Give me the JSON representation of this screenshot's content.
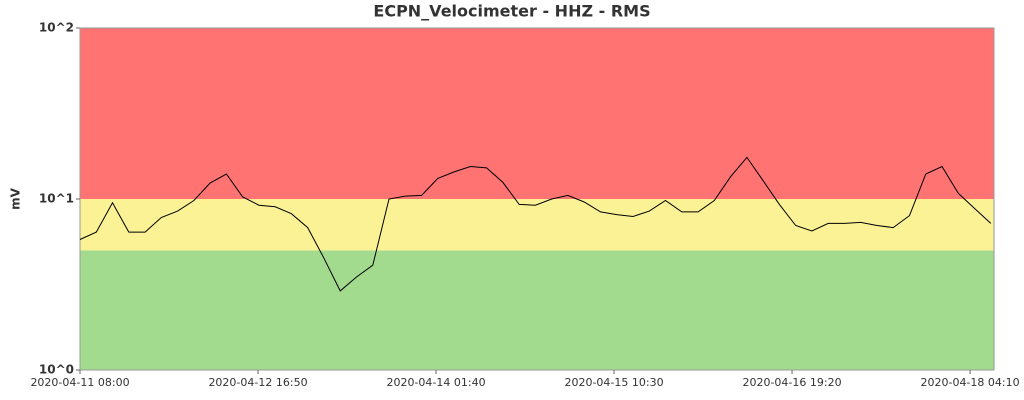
{
  "chart_data": {
    "type": "line",
    "title": "ECPN_Velocimeter - HHZ - RMS",
    "ylabel": "mV",
    "log_y": true,
    "ylim": [
      1,
      100
    ],
    "yticks": [
      {
        "value": 1,
        "label": "10^0"
      },
      {
        "value": 10,
        "label": "10^1"
      },
      {
        "value": 100,
        "label": "10^2"
      }
    ],
    "xlim": [
      "2020-04-11 08:00",
      "2020-04-18 08:35"
    ],
    "xticks": [
      "2020-04-11 08:00",
      "2020-04-12 16:50",
      "2020-04-14 01:40",
      "2020-04-15 10:30",
      "2020-04-16 19:20",
      "2020-04-18 04:10"
    ],
    "bands": [
      {
        "from": 1,
        "to": 5,
        "color": "#a3db8e"
      },
      {
        "from": 5,
        "to": 10,
        "color": "#fbf195"
      },
      {
        "from": 10,
        "to": 100,
        "color": "#ff7373"
      }
    ],
    "x": [
      "2020-04-11 08:00",
      "2020-04-11 11:00",
      "2020-04-11 14:00",
      "2020-04-11 17:00",
      "2020-04-11 20:00",
      "2020-04-11 23:00",
      "2020-04-12 02:00",
      "2020-04-12 05:00",
      "2020-04-12 08:00",
      "2020-04-12 11:00",
      "2020-04-12 14:00",
      "2020-04-12 17:00",
      "2020-04-12 20:00",
      "2020-04-12 23:00",
      "2020-04-13 02:00",
      "2020-04-13 05:00",
      "2020-04-13 08:00",
      "2020-04-13 11:00",
      "2020-04-13 14:00",
      "2020-04-13 17:00",
      "2020-04-13 20:00",
      "2020-04-13 23:00",
      "2020-04-14 02:00",
      "2020-04-14 05:00",
      "2020-04-14 08:00",
      "2020-04-14 11:00",
      "2020-04-14 14:00",
      "2020-04-14 17:00",
      "2020-04-14 20:00",
      "2020-04-14 23:00",
      "2020-04-15 02:00",
      "2020-04-15 05:00",
      "2020-04-15 08:00",
      "2020-04-15 11:00",
      "2020-04-15 14:00",
      "2020-04-15 17:00",
      "2020-04-15 20:00",
      "2020-04-15 23:00",
      "2020-04-16 02:00",
      "2020-04-16 05:00",
      "2020-04-16 08:00",
      "2020-04-16 11:00",
      "2020-04-16 14:00",
      "2020-04-16 17:00",
      "2020-04-16 20:00",
      "2020-04-16 23:00",
      "2020-04-17 02:00",
      "2020-04-17 05:00",
      "2020-04-17 08:00",
      "2020-04-17 11:00",
      "2020-04-17 14:00",
      "2020-04-17 17:00",
      "2020-04-17 20:00",
      "2020-04-17 23:00",
      "2020-04-18 02:00",
      "2020-04-18 05:00",
      "2020-04-18 08:00"
    ],
    "series": [
      {
        "color": "#000000",
        "values": [
          5.8,
          6.4,
          9.5,
          6.4,
          6.4,
          7.8,
          8.5,
          9.8,
          12.4,
          14.0,
          10.3,
          9.2,
          9.0,
          8.2,
          6.8,
          4.5,
          2.9,
          3.5,
          4.1,
          10.0,
          10.4,
          10.5,
          13.2,
          14.4,
          15.5,
          15.2,
          12.5,
          9.3,
          9.2,
          10.0,
          10.5,
          9.6,
          8.4,
          8.1,
          7.9,
          8.5,
          9.8,
          8.4,
          8.4,
          9.8,
          13.5,
          17.5,
          12.8,
          9.3,
          7.0,
          6.5,
          7.2,
          7.2,
          7.3,
          7.0,
          6.8,
          8.0,
          14.0,
          15.5,
          10.8,
          8.8,
          7.2
        ]
      }
    ]
  }
}
